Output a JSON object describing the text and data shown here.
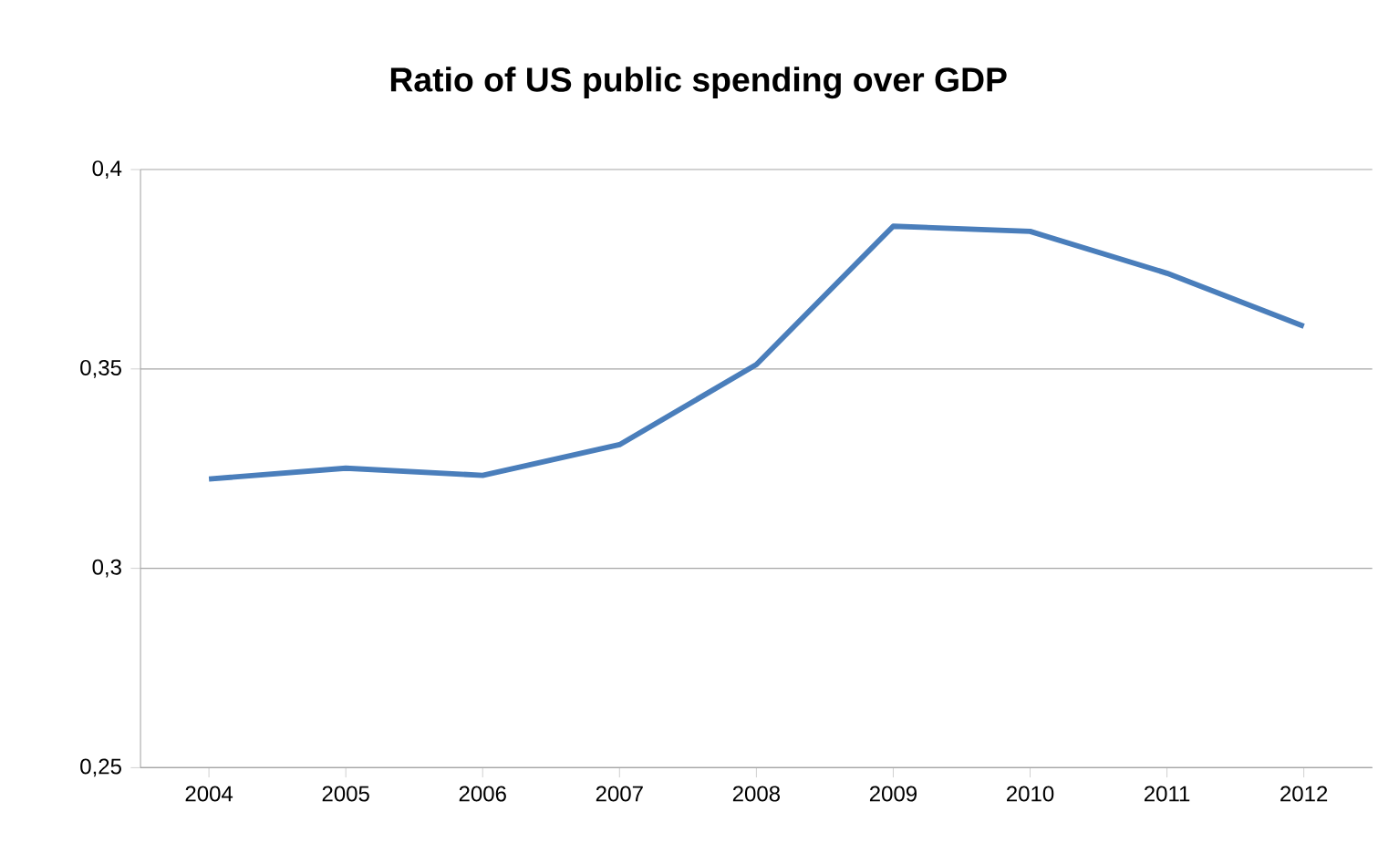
{
  "chart_data": {
    "type": "line",
    "title": "Ratio of US public spending over GDP",
    "categories": [
      "2004",
      "2005",
      "2006",
      "2007",
      "2008",
      "2009",
      "2010",
      "2011",
      "2012"
    ],
    "values": [
      0.3224,
      0.3251,
      0.3233,
      0.331,
      0.3511,
      0.3858,
      0.3845,
      0.374,
      0.3607
    ],
    "color": "#4a7ebb",
    "line_style": "solid",
    "grid": "y",
    "ylim": [
      0.25,
      0.4
    ],
    "yticks": [
      {
        "value": 0.25,
        "label": "0,25"
      },
      {
        "value": 0.3,
        "label": "0,3"
      },
      {
        "value": 0.35,
        "label": "0,35"
      },
      {
        "value": 0.4,
        "label": "0,4"
      }
    ]
  }
}
